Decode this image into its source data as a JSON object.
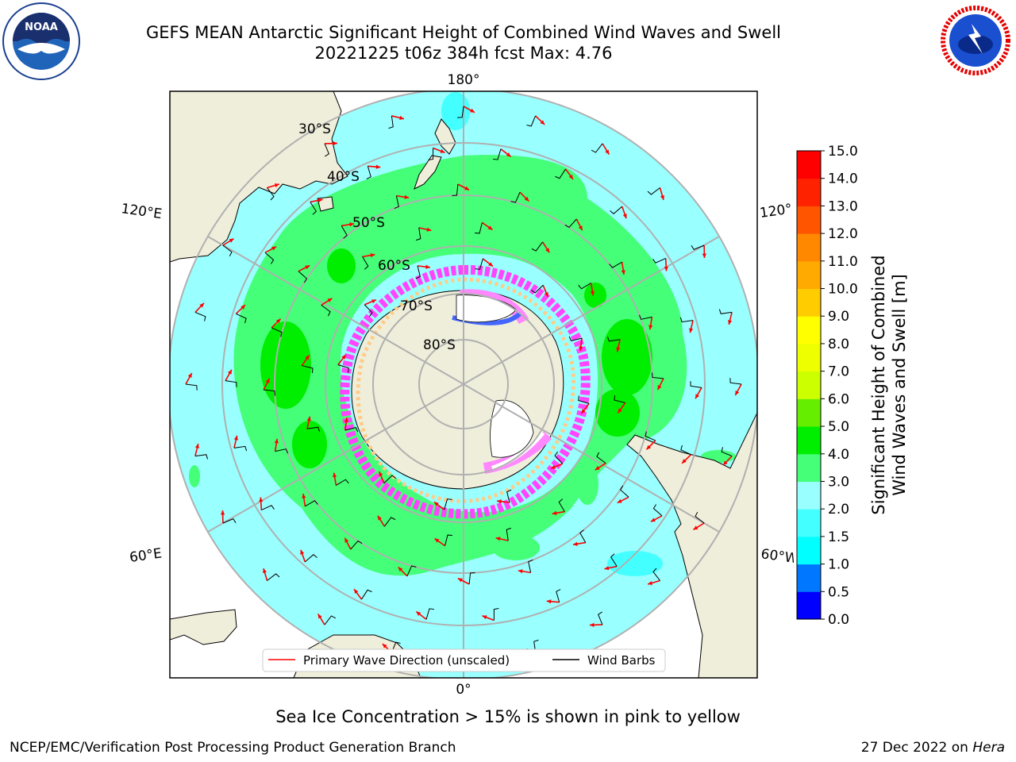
{
  "title_line1": "GEFS MEAN Antarctic Significant Height of Combined Wind Waves and Swell",
  "title_line2": "20221225 t06z 384h fcst   Max: 4.76",
  "map": {
    "lon_labels": {
      "top": "180°",
      "bottom": "0°",
      "left_upper": "120°E",
      "left_lower": "60°E",
      "right_upper": "120°",
      "right_lower": "60°W"
    },
    "lat_labels": [
      "30°S",
      "40°S",
      "50°S",
      "60°S",
      "70°S",
      "80°S"
    ],
    "legend": {
      "wave": "Primary Wave Direction (unscaled)",
      "barbs": "Wind Barbs"
    },
    "colors": {
      "ocean_low": "#99ffff",
      "ocean_mid": "#44ff77",
      "ocean_high": "#00ee00",
      "land": "#efeedb",
      "ice": "#ff44ff",
      "arrow": "#ff0000"
    }
  },
  "colorbar": {
    "label_line1": "Significant Height of Combined",
    "label_line2": "Wind Waves and Swell [m]",
    "ticks": [
      "0.0",
      "0.5",
      "1.0",
      "1.5",
      "2.0",
      "3.0",
      "4.0",
      "5.0",
      "6.0",
      "7.0",
      "8.0",
      "9.0",
      "10.0",
      "11.0",
      "12.0",
      "13.0",
      "14.0",
      "15.0"
    ],
    "colors": [
      "#0000ff",
      "#0077ff",
      "#00ffff",
      "#44ffff",
      "#99ffff",
      "#44ff77",
      "#00ee00",
      "#66ee00",
      "#ccff00",
      "#eeff00",
      "#ffff00",
      "#ffcc00",
      "#ffaa00",
      "#ff8800",
      "#ff5500",
      "#ff2200",
      "#ff0000"
    ]
  },
  "caption": "Sea Ice Concentration > 15% is shown in pink to yellow",
  "footer_left": "NCEP/EMC/Verification Post Processing Product Generation Branch",
  "footer_right_date": "27 Dec 2022 on",
  "footer_right_host": "Hera",
  "logos": {
    "noaa": "NOAA",
    "nws": "NATIONAL WEATHER SERVICE"
  }
}
